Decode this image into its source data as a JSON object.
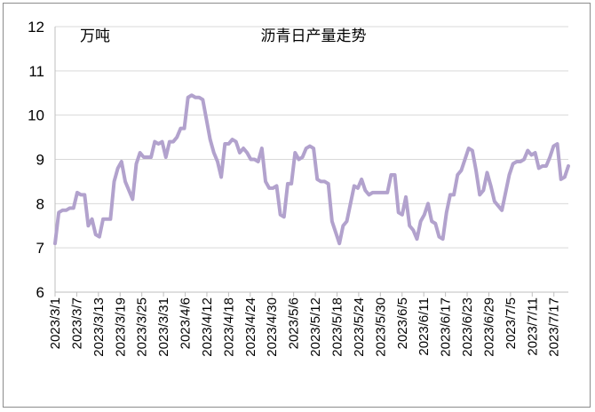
{
  "chart_data": {
    "type": "line",
    "title": "沥青日产量走势",
    "unit_label": "万吨",
    "ylim": [
      6,
      12
    ],
    "y_ticks": [
      "6",
      "7",
      "8",
      "9",
      "10",
      "11",
      "12"
    ],
    "x_tick_labels": [
      "2023/3/1",
      "2023/3/7",
      "2023/3/13",
      "2023/3/19",
      "2023/3/25",
      "2023/3/31",
      "2023/4/6",
      "2023/4/12",
      "2023/4/18",
      "2023/4/24",
      "2023/4/30",
      "2023/5/6",
      "2023/5/12",
      "2023/5/18",
      "2023/5/24",
      "2023/5/30",
      "2023/6/5",
      "2023/6/11",
      "2023/6/17",
      "2023/6/23",
      "2023/6/29",
      "2023/7/5",
      "2023/7/11",
      "2023/7/17"
    ],
    "x_start": "2023/3/1",
    "x_end": "2023/7/21",
    "line_color": "#b2a2cd",
    "series": [
      {
        "values": [
          7.1,
          7.8,
          7.85,
          7.85,
          7.9,
          7.9,
          8.25,
          8.2,
          8.2,
          7.5,
          7.65,
          7.3,
          7.25,
          7.65,
          7.65,
          7.65,
          8.5,
          8.8,
          8.95,
          8.5,
          8.3,
          8.1,
          8.9,
          9.15,
          9.05,
          9.05,
          9.05,
          9.4,
          9.35,
          9.4,
          9.05,
          9.4,
          9.4,
          9.5,
          9.7,
          9.7,
          10.4,
          10.45,
          10.4,
          10.4,
          10.35,
          9.9,
          9.45,
          9.15,
          8.95,
          8.6,
          9.35,
          9.35,
          9.45,
          9.4,
          9.15,
          9.25,
          9.15,
          9.0,
          9.0,
          8.95,
          9.25,
          8.5,
          8.35,
          8.35,
          8.4,
          7.75,
          7.7,
          8.45,
          8.45,
          9.15,
          9.0,
          9.05,
          9.25,
          9.3,
          9.25,
          8.55,
          8.5,
          8.5,
          8.45,
          7.6,
          7.35,
          7.1,
          7.5,
          7.6,
          8.0,
          8.4,
          8.35,
          8.55,
          8.3,
          8.2,
          8.25,
          8.25,
          8.25,
          8.25,
          8.25,
          8.65,
          8.65,
          7.8,
          7.75,
          8.15,
          7.5,
          7.4,
          7.2,
          7.6,
          7.75,
          8.0,
          7.6,
          7.55,
          7.25,
          7.2,
          7.8,
          8.2,
          8.2,
          8.65,
          8.75,
          9.0,
          9.25,
          9.2,
          8.75,
          8.2,
          8.3,
          8.7,
          8.4,
          8.05,
          7.95,
          7.85,
          8.25,
          8.65,
          8.9,
          8.95,
          8.95,
          9.0,
          9.2,
          9.1,
          9.15,
          8.8,
          8.85,
          8.85,
          9.05,
          9.3,
          9.35,
          8.55,
          8.6,
          8.85
        ]
      }
    ]
  }
}
